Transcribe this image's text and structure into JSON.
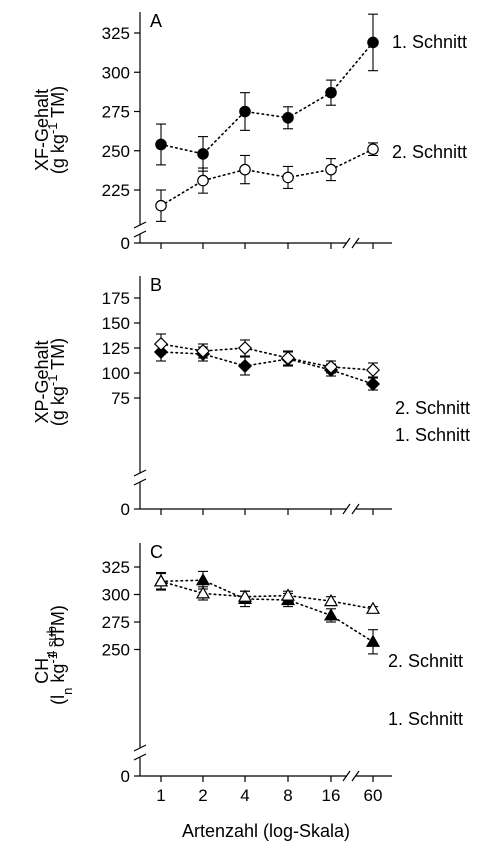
{
  "chart_data": [
    {
      "type": "scatter",
      "panel": "A",
      "ylabel_line1": "XF-Gehalt",
      "ylabel_line2_parts": [
        "(g kg",
        "-1",
        " TM)"
      ],
      "ylim": [
        200,
        337
      ],
      "y_axis_break": true,
      "yticks": [
        0,
        225,
        250,
        275,
        300,
        325
      ],
      "series": [
        {
          "name": "1. Schnitt",
          "marker": "filled-circle",
          "values": [
            254,
            248,
            275,
            271,
            287,
            319
          ],
          "errors": [
            13,
            11,
            12,
            7,
            8,
            18
          ]
        },
        {
          "name": "2. Schnitt",
          "marker": "open-circle",
          "values": [
            215,
            231,
            238,
            233,
            238,
            251
          ],
          "errors": [
            10,
            8,
            9,
            7,
            7,
            4
          ]
        }
      ]
    },
    {
      "type": "scatter",
      "panel": "B",
      "ylabel_line1": "XP-Gehalt",
      "ylabel_line2_parts": [
        "(g kg",
        "-1",
        " TM)"
      ],
      "ylim": [
        50,
        187
      ],
      "y_axis_break": true,
      "yticks": [
        0,
        75,
        100,
        125,
        150,
        175
      ],
      "series": [
        {
          "name": "1. Schnitt",
          "marker": "filled-diamond",
          "values": [
            121,
            119,
            107,
            114,
            103,
            89
          ],
          "errors": [
            9,
            7,
            9,
            7,
            6,
            6
          ]
        },
        {
          "name": "2. Schnitt",
          "marker": "open-diamond",
          "values": [
            129,
            122,
            125,
            115,
            106,
            103
          ],
          "errors": [
            10,
            7,
            8,
            7,
            6,
            7
          ]
        }
      ]
    },
    {
      "type": "scatter",
      "panel": "C",
      "ylabel_line1_parts": [
        "CH",
        "4 sub"
      ],
      "ylabel_line2_parts": [
        "(l",
        "n",
        " kg",
        "-1",
        " oTM)"
      ],
      "ylim": [
        225,
        337
      ],
      "y_axis_break": true,
      "yticks": [
        0,
        250,
        275,
        300,
        325
      ],
      "series": [
        {
          "name": "1. Schnitt",
          "marker": "filled-triangle",
          "values": [
            312,
            313,
            296,
            295,
            281,
            257
          ],
          "errors": [
            8,
            8,
            7,
            6,
            6,
            11
          ]
        },
        {
          "name": "2. Schnitt",
          "marker": "open-triangle",
          "values": [
            312,
            301,
            298,
            299,
            294,
            287
          ],
          "errors": [
            7,
            6,
            5,
            4,
            4,
            2
          ]
        }
      ]
    }
  ],
  "x_categories": [
    "1",
    "2",
    "4",
    "8",
    "16",
    "60"
  ],
  "xlabel": "Artenzahl (log-Skala)",
  "x_axis_break": true
}
